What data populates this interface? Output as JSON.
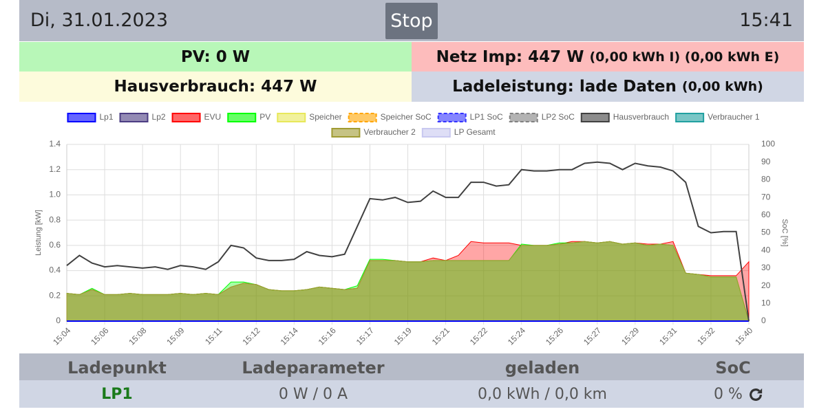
{
  "header": {
    "date": "Di, 31.01.2023",
    "button": "Stop",
    "time": "15:41"
  },
  "status": {
    "pv": "PV: 0 W",
    "netz": "Netz Imp: 447 W",
    "netz_detail": "(0,00 kWh I) (0,00 kWh E)",
    "haus": "Hausverbrauch: 447 W",
    "lade": "Ladeleistung: lade Daten",
    "lade_detail": "(0,00 kWh)"
  },
  "chart_data": {
    "type": "area",
    "y_label": "Leistung [kW]",
    "y2_label": "SoC [%]",
    "x": [
      "15:04",
      null,
      null,
      "15:06",
      null,
      null,
      "15:08",
      null,
      null,
      "15:09",
      null,
      null,
      "15:11",
      null,
      null,
      "15:12",
      null,
      null,
      "15:14",
      null,
      null,
      "15:16",
      null,
      null,
      "15:17",
      null,
      null,
      "15:19",
      null,
      null,
      "15:21",
      null,
      null,
      "15:22",
      null,
      null,
      "15:24",
      null,
      null,
      "15:26",
      null,
      null,
      "15:27",
      null,
      null,
      "15:29",
      null,
      null,
      "15:31",
      null,
      null,
      "15:32",
      null,
      null,
      "15:40"
    ],
    "ylim": [
      0,
      1.4
    ],
    "yticks": [
      0,
      0.2,
      0.4,
      0.6,
      0.8,
      {
        "value": 1,
        "label": "1.0"
      },
      1.2,
      1.4
    ],
    "y2lim": [
      0,
      100
    ],
    "y2ticks": [
      0,
      10,
      20,
      30,
      40,
      50,
      60,
      70,
      80,
      90,
      100
    ],
    "grid": true,
    "series": [
      {
        "name": "Lp1",
        "color": "#0000ff",
        "fill": false,
        "values": [
          0,
          0,
          0,
          0,
          0,
          0,
          0,
          0,
          0,
          0,
          0,
          0,
          0,
          0,
          0,
          0,
          0,
          0,
          0,
          0,
          0,
          0,
          0,
          0,
          0,
          0,
          0,
          0,
          0,
          0,
          0,
          0,
          0,
          0,
          0,
          0,
          0,
          0,
          0,
          0,
          0,
          0,
          0,
          0,
          0,
          0,
          0,
          0,
          0,
          0,
          0,
          0,
          0,
          0,
          0
        ]
      },
      {
        "name": "Lp2",
        "color": "#4b3c82"
      },
      {
        "name": "EVU",
        "color": "#ff0000",
        "fill": true,
        "values": [
          0.22,
          0.21,
          0.25,
          0.21,
          0.21,
          0.22,
          0.21,
          0.21,
          0.21,
          0.22,
          0.21,
          0.22,
          0.21,
          0.27,
          0.3,
          0.29,
          0.25,
          0.24,
          0.24,
          0.25,
          0.27,
          0.26,
          0.25,
          0.26,
          0.48,
          0.48,
          0.48,
          0.47,
          0.47,
          0.5,
          0.48,
          0.52,
          0.63,
          0.62,
          0.62,
          0.62,
          0.6,
          0.6,
          0.6,
          0.61,
          0.63,
          0.63,
          0.62,
          0.63,
          0.61,
          0.62,
          0.61,
          0.61,
          0.63,
          0.38,
          0.37,
          0.36,
          0.36,
          0.36,
          0.47
        ]
      },
      {
        "name": "PV",
        "color": "#00ff00",
        "fill": true,
        "values": [
          0.22,
          0.21,
          0.26,
          0.21,
          0.21,
          0.22,
          0.21,
          0.21,
          0.21,
          0.22,
          0.21,
          0.22,
          0.21,
          0.31,
          0.31,
          0.29,
          0.25,
          0.24,
          0.24,
          0.25,
          0.27,
          0.26,
          0.25,
          0.28,
          0.49,
          0.49,
          0.48,
          0.47,
          0.47,
          0.48,
          0.48,
          0.48,
          0.48,
          0.48,
          0.48,
          0.48,
          0.61,
          0.6,
          0.6,
          0.62,
          0.62,
          0.63,
          0.62,
          0.63,
          0.61,
          0.62,
          0.6,
          0.61,
          0.6,
          0.38,
          0.37,
          0.35,
          0.35,
          0.35,
          0
        ]
      },
      {
        "name": "Speicher",
        "color": "#e8e85a"
      },
      {
        "name": "Speicher SoC",
        "color": "#ffa500",
        "dashed": true
      },
      {
        "name": "LP1 SoC",
        "color": "#3333ff",
        "dashed": true
      },
      {
        "name": "LP2 SoC",
        "color": "#808080",
        "dashed": true
      },
      {
        "name": "Hausverbrauch",
        "color": "#404040",
        "fill": false,
        "values": [
          0.44,
          0.52,
          0.46,
          0.43,
          0.44,
          0.43,
          0.42,
          0.43,
          0.41,
          0.44,
          0.43,
          0.41,
          0.47,
          0.6,
          0.58,
          0.5,
          0.48,
          0.48,
          0.49,
          0.55,
          0.52,
          0.51,
          0.53,
          0.75,
          0.97,
          0.96,
          0.98,
          0.94,
          0.95,
          1.03,
          0.98,
          0.98,
          1.1,
          1.1,
          1.07,
          1.08,
          1.2,
          1.19,
          1.19,
          1.2,
          1.2,
          1.25,
          1.26,
          1.25,
          1.2,
          1.25,
          1.23,
          1.22,
          1.19,
          1.1,
          0.75,
          0.7,
          0.71,
          0.71,
          0
        ]
      },
      {
        "name": "Verbraucher 1",
        "color": "#20a0a0"
      },
      {
        "name": "Verbraucher 2",
        "color": "#a09b32",
        "fill": true,
        "values": [
          0.22,
          0.21,
          0.25,
          0.21,
          0.21,
          0.22,
          0.21,
          0.21,
          0.21,
          0.22,
          0.21,
          0.22,
          0.21,
          0.27,
          0.3,
          0.29,
          0.25,
          0.24,
          0.24,
          0.25,
          0.27,
          0.26,
          0.25,
          0.26,
          0.48,
          0.48,
          0.48,
          0.47,
          0.47,
          0.48,
          0.48,
          0.48,
          0.48,
          0.48,
          0.48,
          0.48,
          0.6,
          0.6,
          0.6,
          0.61,
          0.62,
          0.63,
          0.62,
          0.63,
          0.61,
          0.62,
          0.6,
          0.61,
          0.6,
          0.38,
          0.37,
          0.35,
          0.35,
          0.35,
          0
        ]
      },
      {
        "name": "LP Gesamt",
        "color": "#c8c8f0"
      }
    ]
  },
  "table": {
    "columns": [
      "Ladepunkt",
      "Ladeparameter",
      "geladen",
      "SoC"
    ],
    "rows": [
      [
        "LP1",
        "0 W / 0 A",
        "0,0 kWh / 0,0 km",
        "0 %"
      ]
    ]
  }
}
